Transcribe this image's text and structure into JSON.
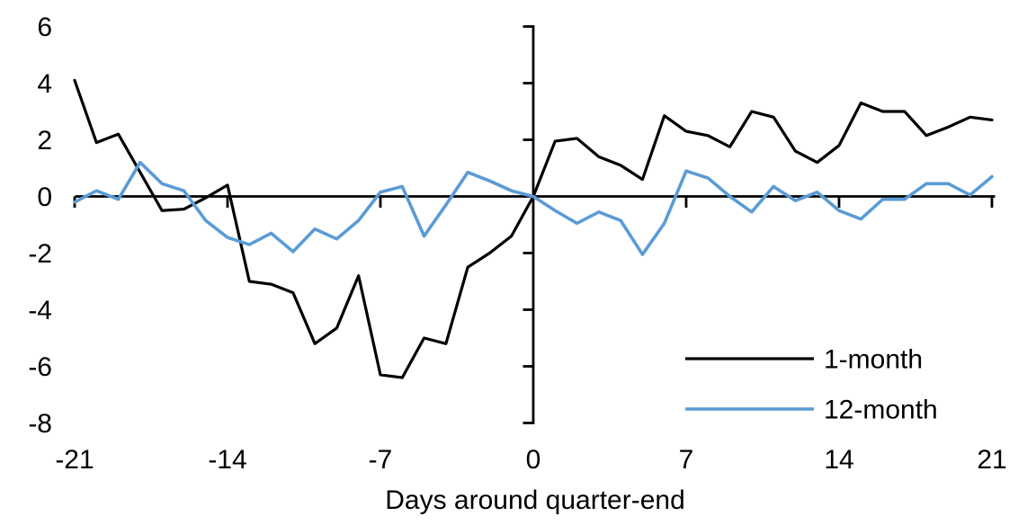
{
  "chart_data": {
    "type": "line",
    "title": "",
    "xlabel": "Days around quarter-end",
    "ylabel": "",
    "xlim": [
      -21,
      21
    ],
    "ylim": [
      -8,
      6
    ],
    "x_ticks": [
      -21,
      -14,
      -7,
      0,
      7,
      14,
      21
    ],
    "x_tick_labels": [
      "-21",
      "-14",
      "-7",
      "0",
      "7",
      "14",
      "21"
    ],
    "y_ticks": [
      6,
      4,
      2,
      0,
      -2,
      -4,
      -6,
      -8
    ],
    "y_tick_labels": [
      "6",
      "4",
      "2",
      "0",
      "-2",
      "-4",
      "-6",
      "-8"
    ],
    "grid": false,
    "legend_position": "inside-bottom-right",
    "axis_color": "#000000",
    "x": [
      -21,
      -20,
      -19,
      -18,
      -17,
      -16,
      -15,
      -14,
      -13,
      -12,
      -11,
      -10,
      -9,
      -8,
      -7,
      -6,
      -5,
      -4,
      -3,
      -2,
      -1,
      0,
      1,
      2,
      3,
      4,
      5,
      6,
      7,
      8,
      9,
      10,
      11,
      12,
      13,
      14,
      15,
      16,
      17,
      18,
      19,
      20,
      21
    ],
    "series": [
      {
        "name": "1-month",
        "color": "#000000",
        "values": [
          4.1,
          1.9,
          2.2,
          0.85,
          -0.5,
          -0.45,
          -0.05,
          0.4,
          -3.0,
          -3.1,
          -3.4,
          -5.2,
          -4.65,
          -2.8,
          -6.3,
          -6.4,
          -5.0,
          -5.2,
          -2.5,
          -2.0,
          -1.4,
          0.0,
          1.95,
          2.05,
          1.4,
          1.1,
          0.6,
          2.85,
          2.3,
          2.15,
          1.75,
          3.0,
          2.8,
          1.6,
          1.2,
          1.8,
          3.3,
          3.0,
          3.0,
          2.15,
          2.45,
          2.8,
          2.7
        ]
      },
      {
        "name": "12-month",
        "color": "#5B9BD5",
        "values": [
          -0.2,
          0.2,
          -0.1,
          1.2,
          0.45,
          0.2,
          -0.85,
          -1.45,
          -1.7,
          -1.3,
          -1.95,
          -1.15,
          -1.5,
          -0.85,
          0.15,
          0.35,
          -1.4,
          -0.3,
          0.85,
          0.55,
          0.2,
          0.0,
          -0.5,
          -0.95,
          -0.55,
          -0.85,
          -2.05,
          -0.95,
          0.9,
          0.65,
          0.0,
          -0.55,
          0.35,
          -0.15,
          0.15,
          -0.5,
          -0.8,
          -0.1,
          -0.1,
          0.45,
          0.45,
          0.05,
          0.7
        ]
      }
    ]
  }
}
